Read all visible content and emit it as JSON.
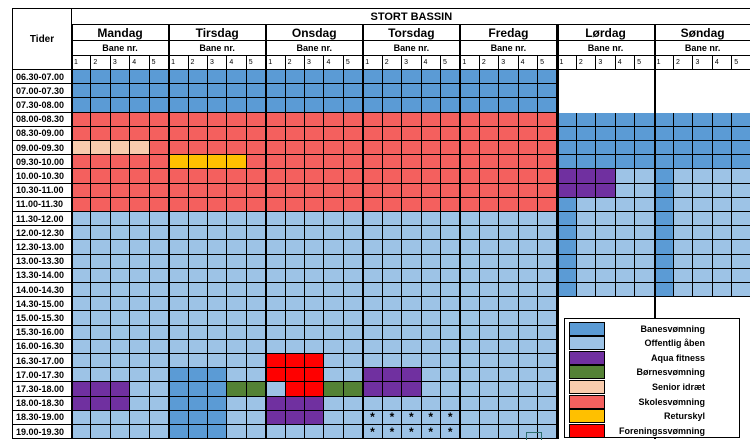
{
  "title": "STORT BASSIN",
  "tider_label": "Tider",
  "bane_label": "Bane nr.",
  "days": [
    "Mandag",
    "Tirsdag",
    "Onsdag",
    "Torsdag",
    "Fredag",
    "Lørdag",
    "Søndag"
  ],
  "lanes": [
    "1",
    "2",
    "3",
    "4",
    "5"
  ],
  "times": [
    "06.30-07.00",
    "07.00-07.30",
    "07.30-08.00",
    "08.00-08.30",
    "08.30-09.00",
    "09.00-09.30",
    "09.30-10.00",
    "10.00-10.30",
    "10.30-11.00",
    "11.00-11.30",
    "11.30-12.00",
    "12.00-12.30",
    "12.30-13.00",
    "13.00-13.30",
    "13.30-14.00",
    "14.00-14.30",
    "14.30-15.00",
    "15.00-15.30",
    "15.30-16.00",
    "16.00-16.30",
    "16.30-17.00",
    "17.00-17.30",
    "17.30-18.00",
    "18.00-18.30",
    "18.30-19.00",
    "19.00-19.30"
  ],
  "colors": {
    "B": "#5b9bd5",
    "O": "#9dc3e6",
    "A": "#7030a0",
    "G": "#548235",
    "S": "#f8cbad",
    "K": "#f4605e",
    "R": "#ffc000",
    "F": "#ff0000",
    "W": "#ffffff"
  },
  "legend": [
    {
      "key": "B",
      "label": "Banesvømning"
    },
    {
      "key": "O",
      "label": "Offentlig åben"
    },
    {
      "key": "A",
      "label": "Aqua fitness"
    },
    {
      "key": "G",
      "label": "Børnesvømning"
    },
    {
      "key": "S",
      "label": "Senior idræt"
    },
    {
      "key": "K",
      "label": "Skolesvømning"
    },
    {
      "key": "R",
      "label": "Returskyl"
    },
    {
      "key": "F",
      "label": "Foreningssvømning"
    }
  ],
  "star_mark": "*",
  "star_cells": "Torsdag rows 18.30-19.00 and 19.00-19.30, all lanes",
  "schedule": {
    "Mandag": [
      "BBBBB",
      "BBBBB",
      "BBBBB",
      "KKKKK",
      "KKKKK",
      "SSSSK",
      "KKKKK",
      "KKKKK",
      "KKKKK",
      "KKKKK",
      "OOOOO",
      "OOOOO",
      "OOOOO",
      "OOOOO",
      "OOOOO",
      "OOOOO",
      "OOOOO",
      "OOOOO",
      "OOOOO",
      "OOOOO",
      "OOOOO",
      "OOOOO",
      "AAAOO",
      "AAAOO",
      "OOOOO",
      "OOOOO"
    ],
    "Tirsdag": [
      "BBBBB",
      "BBBBB",
      "BBBBB",
      "KKKKK",
      "KKKKK",
      "KKKKK",
      "RRRRK",
      "KKKKK",
      "KKKKK",
      "KKKKK",
      "OOOOO",
      "OOOOO",
      "OOOOO",
      "OOOOO",
      "OOOOO",
      "OOOOO",
      "OOOOO",
      "OOOOO",
      "OOOOO",
      "OOOOO",
      "OOOOO",
      "BBBOO",
      "BBBGG",
      "BBBOO",
      "BBBOO",
      "BBBOO"
    ],
    "Onsdag": [
      "BBBBB",
      "BBBBB",
      "BBBBB",
      "KKKKK",
      "KKKKK",
      "KKKKK",
      "KKKKK",
      "KKKKK",
      "KKKKK",
      "KKKKK",
      "OOOOO",
      "OOOOO",
      "OOOOO",
      "OOOOO",
      "OOOOO",
      "OOOOO",
      "OOOOO",
      "OOOOO",
      "OOOOO",
      "OOOOO",
      "FFFOO",
      "FFFOO",
      "OFFGG",
      "AAAOO",
      "AAAOO",
      "OOOOO"
    ],
    "Torsdag": [
      "BBBBB",
      "BBBBB",
      "BBBBB",
      "KKKKK",
      "KKKKK",
      "KKKKK",
      "KKKKK",
      "KKKKK",
      "KKKKK",
      "KKKKK",
      "OOOOO",
      "OOOOO",
      "OOOOO",
      "OOOOO",
      "OOOOO",
      "OOOOO",
      "OOOOO",
      "OOOOO",
      "OOOOO",
      "OOOOO",
      "OOOOO",
      "AAAOO",
      "AAAOO",
      "OOOOO",
      "OOOOO",
      "OOOOO"
    ],
    "Fredag": [
      "BBBBB",
      "BBBBB",
      "BBBBB",
      "KKKKK",
      "KKKKK",
      "KKKKK",
      "KKKKK",
      "KKKKK",
      "KKKKK",
      "KKKKK",
      "OOOOO",
      "OOOOO",
      "OOOOO",
      "OOOOO",
      "OOOOO",
      "OOOOO",
      "OOOOO",
      "OOOOO",
      "OOOOO",
      "OOOOO",
      "OOOOO",
      "OOOOO",
      "OOOOO",
      "OOOOO",
      "OOOOO",
      "OOOOO"
    ],
    "Lørdag": [
      "WWWWW",
      "WWWWW",
      "WWWWW",
      "BBBBB",
      "BBBBB",
      "BBBBB",
      "BBBBB",
      "AAAOO",
      "AAAOO",
      "BOOOO",
      "BOOOO",
      "BOOOO",
      "BOOOO",
      "BOOOO",
      "BOOOO",
      "BOOOO",
      "WWWWW",
      "WWWWW",
      "WWWWW",
      "WWWWW",
      "WWWWW",
      "WWWWW",
      "WWWWW",
      "WWWWW",
      "WWWWW",
      "WWWWW"
    ],
    "Søndag": [
      "WWWWW",
      "WWWWW",
      "WWWWW",
      "BBBBB",
      "BBBBB",
      "BBBBB",
      "BBBBB",
      "BOOOO",
      "BOOOO",
      "BOOOO",
      "BOOOO",
      "BOOOO",
      "BOOOO",
      "BOOOO",
      "BOOOO",
      "BOOOO",
      "WWWWW",
      "WWWWW",
      "WWWWW",
      "WWWWW",
      "WWWWW",
      "WWWWW",
      "WWWWW",
      "WWWWW",
      "WWWWW",
      "WWWWW"
    ]
  }
}
